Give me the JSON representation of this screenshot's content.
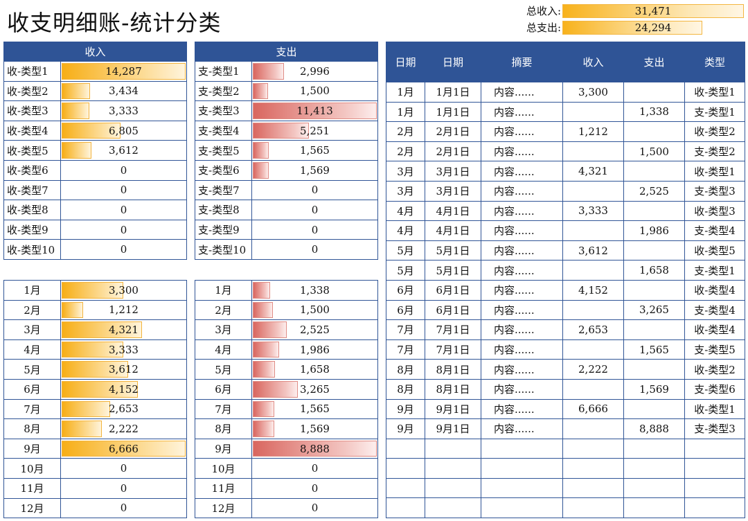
{
  "title": "收支明细账-统计分类",
  "summary": {
    "income_label": "总收入:",
    "income_value": "31,471",
    "income_fraction": 1.0,
    "expense_label": "总支出:",
    "expense_value": "24,294",
    "expense_fraction": 0.77
  },
  "income_category": {
    "header": "收入",
    "rows": [
      {
        "label": "收-类型1",
        "value": "14,287",
        "ratio": 1.0
      },
      {
        "label": "收-类型2",
        "value": "3,434",
        "ratio": 0.24
      },
      {
        "label": "收-类型3",
        "value": "3,333",
        "ratio": 0.23
      },
      {
        "label": "收-类型4",
        "value": "6,805",
        "ratio": 0.48
      },
      {
        "label": "收-类型5",
        "value": "3,612",
        "ratio": 0.25
      },
      {
        "label": "收-类型6",
        "value": "0",
        "ratio": 0
      },
      {
        "label": "收-类型7",
        "value": "0",
        "ratio": 0
      },
      {
        "label": "收-类型8",
        "value": "0",
        "ratio": 0
      },
      {
        "label": "收-类型9",
        "value": "0",
        "ratio": 0
      },
      {
        "label": "收-类型10",
        "value": "0",
        "ratio": 0
      }
    ]
  },
  "expense_category": {
    "header": "支出",
    "rows": [
      {
        "label": "支-类型1",
        "value": "2,996",
        "ratio": 0.26
      },
      {
        "label": "支-类型2",
        "value": "1,500",
        "ratio": 0.13
      },
      {
        "label": "支-类型3",
        "value": "11,413",
        "ratio": 1.0
      },
      {
        "label": "支-类型4",
        "value": "5,251",
        "ratio": 0.46
      },
      {
        "label": "支-类型5",
        "value": "1,565",
        "ratio": 0.14
      },
      {
        "label": "支-类型6",
        "value": "1,569",
        "ratio": 0.14
      },
      {
        "label": "支-类型7",
        "value": "0",
        "ratio": 0
      },
      {
        "label": "支-类型8",
        "value": "0",
        "ratio": 0
      },
      {
        "label": "支-类型9",
        "value": "0",
        "ratio": 0
      },
      {
        "label": "支-类型10",
        "value": "0",
        "ratio": 0
      }
    ]
  },
  "income_month": {
    "rows": [
      {
        "label": "1月",
        "value": "3,300",
        "ratio": 0.5
      },
      {
        "label": "2月",
        "value": "1,212",
        "ratio": 0.18
      },
      {
        "label": "3月",
        "value": "4,321",
        "ratio": 0.65
      },
      {
        "label": "4月",
        "value": "3,333",
        "ratio": 0.5
      },
      {
        "label": "5月",
        "value": "3,612",
        "ratio": 0.54
      },
      {
        "label": "6月",
        "value": "4,152",
        "ratio": 0.62
      },
      {
        "label": "7月",
        "value": "2,653",
        "ratio": 0.4
      },
      {
        "label": "8月",
        "value": "2,222",
        "ratio": 0.33
      },
      {
        "label": "9月",
        "value": "6,666",
        "ratio": 1.0
      },
      {
        "label": "10月",
        "value": "0",
        "ratio": 0
      },
      {
        "label": "11月",
        "value": "0",
        "ratio": 0
      },
      {
        "label": "12月",
        "value": "0",
        "ratio": 0
      }
    ]
  },
  "expense_month": {
    "rows": [
      {
        "label": "1月",
        "value": "1,338",
        "ratio": 0.15
      },
      {
        "label": "2月",
        "value": "1,500",
        "ratio": 0.17
      },
      {
        "label": "3月",
        "value": "2,525",
        "ratio": 0.28
      },
      {
        "label": "4月",
        "value": "1,986",
        "ratio": 0.22
      },
      {
        "label": "5月",
        "value": "1,658",
        "ratio": 0.19
      },
      {
        "label": "6月",
        "value": "3,265",
        "ratio": 0.37
      },
      {
        "label": "7月",
        "value": "1,565",
        "ratio": 0.18
      },
      {
        "label": "8月",
        "value": "1,569",
        "ratio": 0.18
      },
      {
        "label": "9月",
        "value": "8,888",
        "ratio": 1.0
      },
      {
        "label": "10月",
        "value": "0",
        "ratio": 0
      },
      {
        "label": "11月",
        "value": "0",
        "ratio": 0
      },
      {
        "label": "12月",
        "value": "0",
        "ratio": 0
      }
    ]
  },
  "detail": {
    "headers": [
      "日期",
      "日期",
      "摘要",
      "收入",
      "支出",
      "类型"
    ],
    "rows": [
      [
        "1月",
        "1月1日",
        "内容......",
        "3,300",
        "",
        "收-类型1"
      ],
      [
        "1月",
        "1月1日",
        "内容......",
        "",
        "1,338",
        "支-类型1"
      ],
      [
        "2月",
        "2月1日",
        "内容......",
        "1,212",
        "",
        "收-类型2"
      ],
      [
        "2月",
        "2月1日",
        "内容......",
        "",
        "1,500",
        "支-类型2"
      ],
      [
        "3月",
        "3月1日",
        "内容......",
        "4,321",
        "",
        "收-类型1"
      ],
      [
        "3月",
        "3月1日",
        "内容......",
        "",
        "2,525",
        "支-类型3"
      ],
      [
        "4月",
        "4月1日",
        "内容......",
        "3,333",
        "",
        "收-类型3"
      ],
      [
        "4月",
        "4月1日",
        "内容......",
        "",
        "1,986",
        "支-类型4"
      ],
      [
        "5月",
        "5月1日",
        "内容......",
        "3,612",
        "",
        "收-类型5"
      ],
      [
        "5月",
        "5月1日",
        "内容......",
        "",
        "1,658",
        "支-类型1"
      ],
      [
        "6月",
        "6月1日",
        "内容......",
        "4,152",
        "",
        "收-类型4"
      ],
      [
        "6月",
        "6月1日",
        "内容......",
        "",
        "3,265",
        "支-类型4"
      ],
      [
        "7月",
        "7月1日",
        "内容......",
        "2,653",
        "",
        "收-类型4"
      ],
      [
        "7月",
        "7月1日",
        "内容......",
        "",
        "1,565",
        "支-类型5"
      ],
      [
        "8月",
        "8月1日",
        "内容......",
        "2,222",
        "",
        "收-类型2"
      ],
      [
        "8月",
        "8月1日",
        "内容......",
        "",
        "1,569",
        "支-类型6"
      ],
      [
        "9月",
        "9月1日",
        "内容......",
        "6,666",
        "",
        "收-类型1"
      ],
      [
        "9月",
        "9月1日",
        "内容......",
        "",
        "8,888",
        "支-类型3"
      ],
      [
        "",
        "",
        "",
        "",
        "",
        ""
      ],
      [
        "",
        "",
        "",
        "",
        "",
        ""
      ],
      [
        "",
        "",
        "",
        "",
        "",
        ""
      ],
      [
        "",
        "",
        "",
        "",
        "",
        ""
      ]
    ]
  }
}
